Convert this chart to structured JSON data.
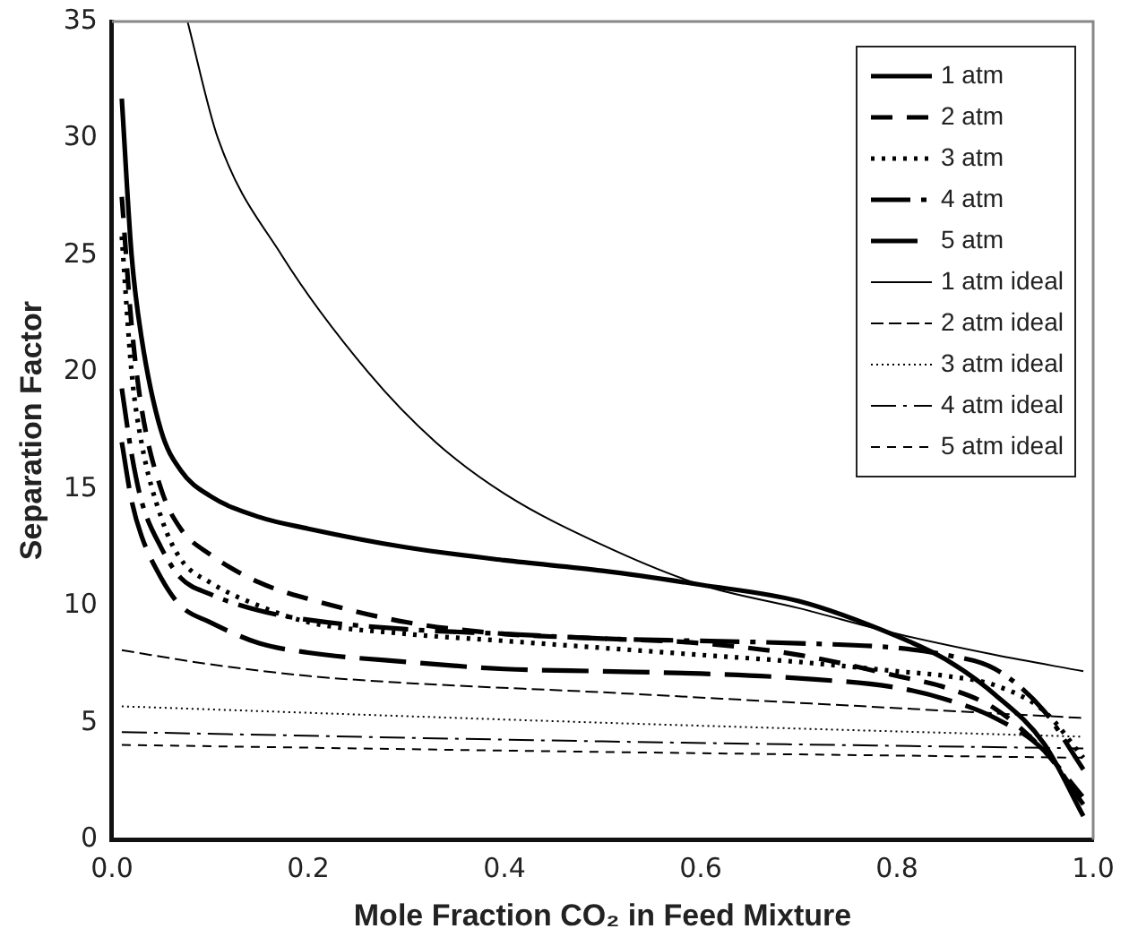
{
  "chart_data": {
    "type": "line",
    "xlabel": "Mole Fraction CO₂ in Feed Mixture",
    "ylabel": "Separation Factor",
    "legend": "top right",
    "grid": false,
    "marker": "none",
    "xlim": [
      0,
      1
    ],
    "xticks": [
      {
        "value": 0,
        "label": "0.0"
      },
      {
        "value": 0.2,
        "label": "0.2"
      },
      {
        "value": 0.4,
        "label": "0.4"
      },
      {
        "value": 0.6,
        "label": "0.6"
      },
      {
        "value": 0.8,
        "label": "0.8"
      },
      {
        "value": 1,
        "label": "1.0"
      }
    ],
    "ylim": [
      0,
      35
    ],
    "yticks": [
      0,
      5,
      10,
      15,
      20,
      25,
      30,
      35
    ],
    "series": [
      {
        "name": "1 atm",
        "color": "#000000",
        "line_style": "solid",
        "x": [
          0.01,
          0.02,
          0.03,
          0.05,
          0.07,
          0.1,
          0.15,
          0.2,
          0.3,
          0.4,
          0.5,
          0.6,
          0.7,
          0.8,
          0.85,
          0.9,
          0.95,
          0.99
        ],
        "values": [
          31.7,
          25,
          21.5,
          17.5,
          15.8,
          14.7,
          13.8,
          13.3,
          12.5,
          11.95,
          11.5,
          10.9,
          10.2,
          8.7,
          7.7,
          6.2,
          4.1,
          1.0
        ]
      },
      {
        "name": "2 atm",
        "color": "#000000",
        "line_style": "dashed",
        "x": [
          0.01,
          0.02,
          0.03,
          0.05,
          0.07,
          0.1,
          0.15,
          0.2,
          0.3,
          0.4,
          0.5,
          0.6,
          0.7,
          0.8,
          0.85,
          0.9,
          0.95,
          0.99
        ],
        "values": [
          27.5,
          22,
          18.5,
          15,
          13.3,
          12.2,
          11,
          10.3,
          9.3,
          8.8,
          8.6,
          8.4,
          7.9,
          7.0,
          6.5,
          5.6,
          3.8,
          1.8
        ]
      },
      {
        "name": "3 atm",
        "color": "#000000",
        "line_style": "dotted",
        "x": [
          0.01,
          0.02,
          0.03,
          0.05,
          0.07,
          0.1,
          0.15,
          0.2,
          0.3,
          0.4,
          0.5,
          0.6,
          0.7,
          0.8,
          0.85,
          0.9,
          0.95,
          0.99
        ],
        "values": [
          25.8,
          20,
          17,
          13.8,
          12,
          11,
          10,
          9.3,
          8.8,
          8.5,
          8.2,
          7.9,
          7.6,
          7.2,
          7.0,
          6.6,
          5.5,
          3.5
        ]
      },
      {
        "name": "4 atm",
        "color": "#000000",
        "line_style": "dashed",
        "x": [
          0.01,
          0.02,
          0.03,
          0.05,
          0.07,
          0.1,
          0.15,
          0.2,
          0.3,
          0.4,
          0.5,
          0.6,
          0.7,
          0.8,
          0.85,
          0.9,
          0.95,
          0.99
        ],
        "values": [
          19.3,
          16.5,
          14.5,
          12.5,
          11.2,
          10.5,
          9.8,
          9.4,
          9.0,
          8.8,
          8.6,
          8.5,
          8.4,
          8.2,
          7.9,
          7.3,
          5.5,
          3.0
        ]
      },
      {
        "name": "5 atm",
        "color": "#000000",
        "line_style": "dashed",
        "x": [
          0.01,
          0.02,
          0.03,
          0.05,
          0.07,
          0.1,
          0.15,
          0.2,
          0.3,
          0.4,
          0.5,
          0.6,
          0.7,
          0.8,
          0.85,
          0.9,
          0.95,
          0.99
        ],
        "values": [
          17,
          14.5,
          13,
          11.2,
          10,
          9.3,
          8.4,
          8.0,
          7.6,
          7.3,
          7.2,
          7.1,
          6.9,
          6.5,
          6.0,
          5.2,
          3.8,
          1.5
        ]
      },
      {
        "name": "1 atm ideal",
        "color": "#000000",
        "line_style": "solid",
        "x": [
          0.077,
          0.108,
          0.173,
          0.261,
          0.33,
          0.4,
          0.5,
          0.6,
          0.7,
          0.8,
          0.9,
          0.99
        ],
        "values": [
          35,
          30,
          25,
          20,
          17,
          14.8,
          12.6,
          10.9,
          9.9,
          8.8,
          7.9,
          7.2
        ]
      },
      {
        "name": "2 atm ideal",
        "color": "#000000",
        "line_style": "dashed",
        "x": [
          0.01,
          0.1,
          0.2,
          0.3,
          0.5,
          0.7,
          0.9,
          0.99
        ],
        "values": [
          8.1,
          7.5,
          7.0,
          6.7,
          6.3,
          5.85,
          5.4,
          5.2
        ]
      },
      {
        "name": "3 atm ideal",
        "color": "#000000",
        "line_style": "dotted",
        "x": [
          0.01,
          0.5,
          0.99
        ],
        "values": [
          5.7,
          5.0,
          4.4
        ]
      },
      {
        "name": "4 atm ideal",
        "color": "#000000",
        "line_style": "dashed",
        "x": [
          0.01,
          0.5,
          0.99
        ],
        "values": [
          4.6,
          4.2,
          3.9
        ]
      },
      {
        "name": "5 atm ideal",
        "color": "#000000",
        "line_style": "dashed",
        "x": [
          0.01,
          0.5,
          0.99
        ],
        "values": [
          4.05,
          3.75,
          3.5
        ]
      }
    ]
  }
}
